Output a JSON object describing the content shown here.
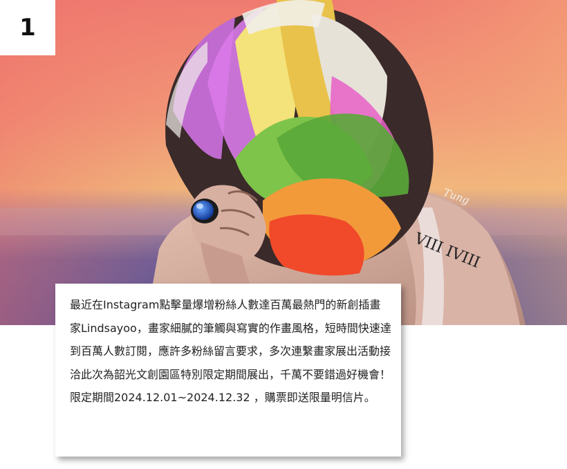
{
  "badge": {
    "number": "1"
  },
  "artwork": {
    "signature": "Tung",
    "tattoo_text": "VIII IVIII"
  },
  "caption": {
    "text": "最近在Instagram點擊量爆增粉絲人數達百萬最熱門的新創插畫家Lindsayoo，畫家細膩的筆觸與寫實的作畫風格，短時間快速達到百萬人數訂閱，應許多粉絲留言要求，多次連繫畫家展出活動接洽此次為韶光文創園區特別限定期間展出，千萬不要錯過好機會！限定期間2024.12.01~2024.12.32 ，購票即送限量明信片。"
  }
}
